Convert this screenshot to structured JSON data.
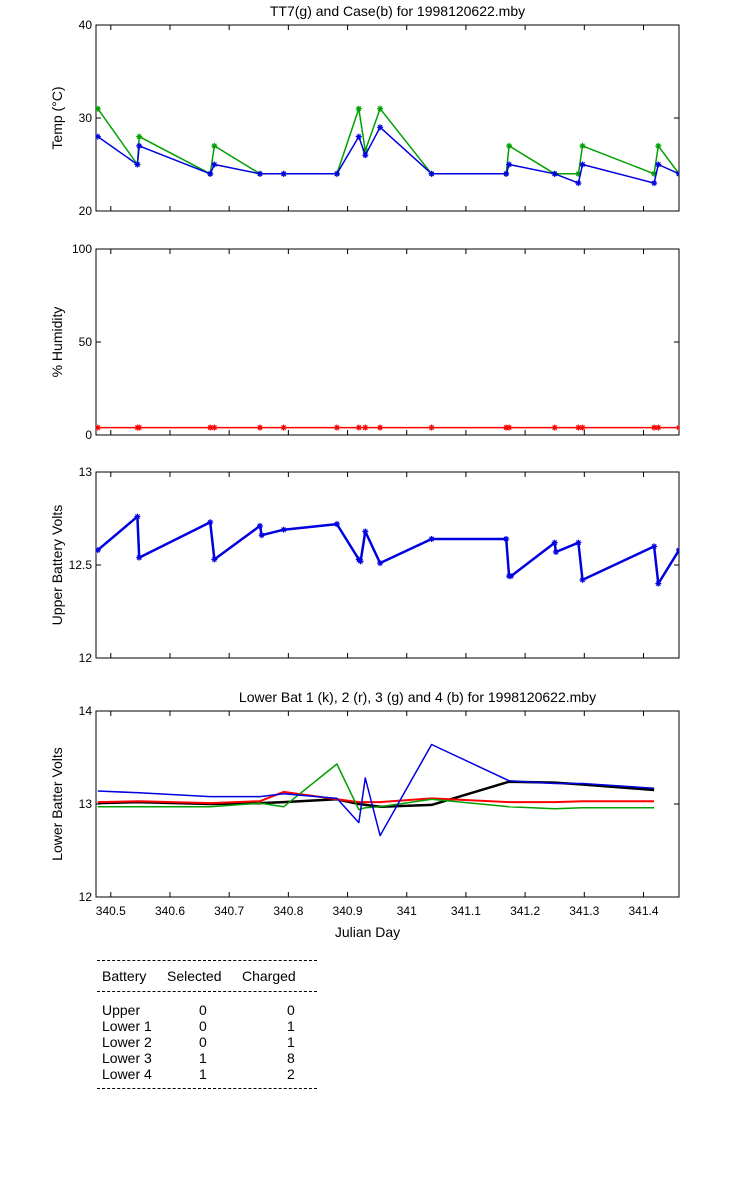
{
  "charts": [
    {
      "id": "temp",
      "type": "line",
      "title": "TT7(g) and Case(b) for 1998120622.mby",
      "ylabel": "Temp  (°C)",
      "xlabel": "",
      "xlim": [
        340.475,
        341.46
      ],
      "ylim": [
        20,
        40
      ],
      "yticks": [
        "20",
        "30",
        "40"
      ],
      "ytick_values": [
        20,
        30,
        40
      ],
      "xticks": [],
      "series": [
        {
          "name": "TT7",
          "color": "#00a000",
          "width": 1.5,
          "marker": "*",
          "x": [
            340.478,
            340.545,
            340.548,
            340.668,
            340.675,
            340.752,
            340.792,
            340.882,
            340.919,
            340.93,
            340.955,
            341.042,
            341.168,
            341.173,
            341.25,
            341.29,
            341.297,
            341.418,
            341.425,
            341.46
          ],
          "y": [
            31,
            25,
            28,
            24,
            27,
            24,
            24,
            24,
            31,
            26.5,
            31,
            24,
            24,
            27,
            24,
            24,
            27,
            24,
            27,
            24
          ]
        },
        {
          "name": "Case",
          "color": "#0000e0",
          "width": 1.5,
          "marker": "*",
          "x": [
            340.478,
            340.545,
            340.548,
            340.668,
            340.675,
            340.752,
            340.792,
            340.882,
            340.919,
            340.93,
            340.955,
            341.042,
            341.168,
            341.173,
            341.25,
            341.29,
            341.297,
            341.418,
            341.425,
            341.46
          ],
          "y": [
            28,
            25,
            27,
            24,
            25,
            24,
            24,
            24,
            28,
            26,
            29,
            24,
            24,
            25,
            24,
            23,
            25,
            23,
            25,
            24
          ]
        }
      ]
    },
    {
      "id": "humidity",
      "type": "line",
      "title": "",
      "ylabel": "% Humidity",
      "xlabel": "",
      "xlim": [
        340.475,
        341.46
      ],
      "ylim": [
        0,
        100
      ],
      "yticks": [
        "0",
        "50",
        "100"
      ],
      "ytick_values": [
        0,
        50,
        100
      ],
      "xticks": [],
      "series": [
        {
          "name": "Humidity",
          "color": "#ff0000",
          "width": 1.5,
          "marker": "*",
          "x": [
            340.478,
            340.545,
            340.548,
            340.668,
            340.675,
            340.752,
            340.792,
            340.882,
            340.919,
            340.93,
            340.955,
            341.042,
            341.168,
            341.173,
            341.25,
            341.29,
            341.297,
            341.418,
            341.425,
            341.46
          ],
          "y": [
            4,
            4,
            4,
            4,
            4,
            4,
            4,
            4,
            4,
            4,
            4,
            4,
            4,
            4,
            4,
            4,
            4,
            4,
            4,
            4
          ]
        }
      ]
    },
    {
      "id": "upper",
      "type": "line",
      "title": "",
      "ylabel": "Upper Battery Volts",
      "xlabel": "",
      "xlim": [
        340.475,
        341.46
      ],
      "ylim": [
        12,
        13
      ],
      "yticks": [
        "12",
        "12.5",
        "13"
      ],
      "ytick_values": [
        12,
        12.5,
        13
      ],
      "xticks": [],
      "series": [
        {
          "name": "Upper",
          "color": "#0000e0",
          "width": 2.5,
          "marker": "*",
          "x": [
            340.478,
            340.545,
            340.548,
            340.668,
            340.675,
            340.752,
            340.755,
            340.792,
            340.882,
            340.919,
            340.922,
            340.93,
            340.955,
            341.042,
            341.168,
            341.173,
            341.176,
            341.25,
            341.252,
            341.29,
            341.297,
            341.418,
            341.425,
            341.46
          ],
          "y": [
            12.58,
            12.76,
            12.54,
            12.73,
            12.53,
            12.71,
            12.66,
            12.69,
            12.72,
            12.53,
            12.52,
            12.68,
            12.51,
            12.64,
            12.64,
            12.44,
            12.44,
            12.62,
            12.57,
            12.62,
            12.42,
            12.6,
            12.4,
            12.58
          ]
        }
      ]
    },
    {
      "id": "lower",
      "type": "line",
      "title": "Lower Bat 1 (k), 2 (r), 3 (g) and 4 (b) for 1998120622.mby",
      "ylabel": "Lower Batter Volts",
      "xlabel": "Julian Day",
      "xlim": [
        340.475,
        341.46
      ],
      "ylim": [
        12,
        14
      ],
      "yticks": [
        "12",
        "13",
        "14"
      ],
      "ytick_values": [
        12,
        13,
        14
      ],
      "xticks": [
        "340.5",
        "340.6",
        "340.7",
        "340.8",
        "340.9",
        "341",
        "341.1",
        "341.2",
        "341.3",
        "341.4"
      ],
      "xtick_values": [
        340.5,
        340.6,
        340.7,
        340.8,
        340.9,
        341.0,
        341.1,
        341.2,
        341.3,
        341.4
      ],
      "series": [
        {
          "name": "Lower Bat 1",
          "color": "#000000",
          "width": 2.5,
          "marker": "",
          "x": [
            340.478,
            340.548,
            340.668,
            340.752,
            340.792,
            340.882,
            340.919,
            340.955,
            341.042,
            341.173,
            341.25,
            341.297,
            341.418
          ],
          "y": [
            13.01,
            13.02,
            13.0,
            13.01,
            13.02,
            13.05,
            13.0,
            12.97,
            12.99,
            13.24,
            13.23,
            13.21,
            13.15
          ]
        },
        {
          "name": "Lower Bat 2",
          "color": "#ff0000",
          "width": 2.0,
          "marker": "",
          "x": [
            340.478,
            340.548,
            340.668,
            340.752,
            340.792,
            340.882,
            340.919,
            340.955,
            341.042,
            341.173,
            341.25,
            341.297,
            341.418
          ],
          "y": [
            13.02,
            13.03,
            13.01,
            13.03,
            13.13,
            13.05,
            13.02,
            13.02,
            13.06,
            13.02,
            13.02,
            13.03,
            13.03
          ]
        },
        {
          "name": "Lower Bat 3",
          "color": "#00a000",
          "width": 1.5,
          "marker": "",
          "x": [
            340.478,
            340.548,
            340.668,
            340.752,
            340.792,
            340.882,
            340.919,
            340.93,
            340.955,
            341.042,
            341.173,
            341.25,
            341.297,
            341.418
          ],
          "y": [
            12.97,
            12.97,
            12.97,
            13.01,
            12.97,
            13.43,
            12.94,
            12.96,
            12.97,
            13.05,
            12.97,
            12.95,
            12.96,
            12.96
          ]
        },
        {
          "name": "Lower Bat 4",
          "color": "#0000e0",
          "width": 1.5,
          "marker": "",
          "x": [
            340.478,
            340.548,
            340.668,
            340.752,
            340.792,
            340.882,
            340.919,
            340.93,
            340.955,
            341.042,
            341.173,
            341.25,
            341.297,
            341.418
          ],
          "y": [
            13.14,
            13.12,
            13.08,
            13.08,
            13.11,
            13.06,
            12.8,
            13.28,
            12.66,
            13.64,
            13.25,
            13.22,
            13.22,
            13.17
          ]
        }
      ]
    }
  ],
  "chart_data": [
    {
      "type": "line",
      "title": "TT7(g) and Case(b) for 1998120622.mby",
      "ylabel": "Temp  (°C)",
      "ylim": [
        20,
        40
      ]
    },
    {
      "type": "line",
      "title": "",
      "ylabel": "% Humidity",
      "ylim": [
        0,
        100
      ]
    },
    {
      "type": "line",
      "title": "",
      "ylabel": "Upper Battery Volts",
      "ylim": [
        12,
        13
      ]
    },
    {
      "type": "line",
      "title": "Lower Bat 1 (k), 2 (r), 3 (g) and 4 (b) for 1998120622.mby",
      "ylabel": "Lower Batter Volts",
      "xlabel": "Julian Day",
      "ylim": [
        12,
        14
      ]
    }
  ],
  "battery_table": {
    "headers": [
      "Battery",
      "Selected",
      "Charged"
    ],
    "rows": [
      {
        "battery": "Upper",
        "selected": "0",
        "charged": "0"
      },
      {
        "battery": "Lower 1",
        "selected": "0",
        "charged": "1"
      },
      {
        "battery": "Lower 2",
        "selected": "0",
        "charged": "1"
      },
      {
        "battery": "Lower 3",
        "selected": "1",
        "charged": "8"
      },
      {
        "battery": "Lower 4",
        "selected": "1",
        "charged": "2"
      }
    ]
  }
}
